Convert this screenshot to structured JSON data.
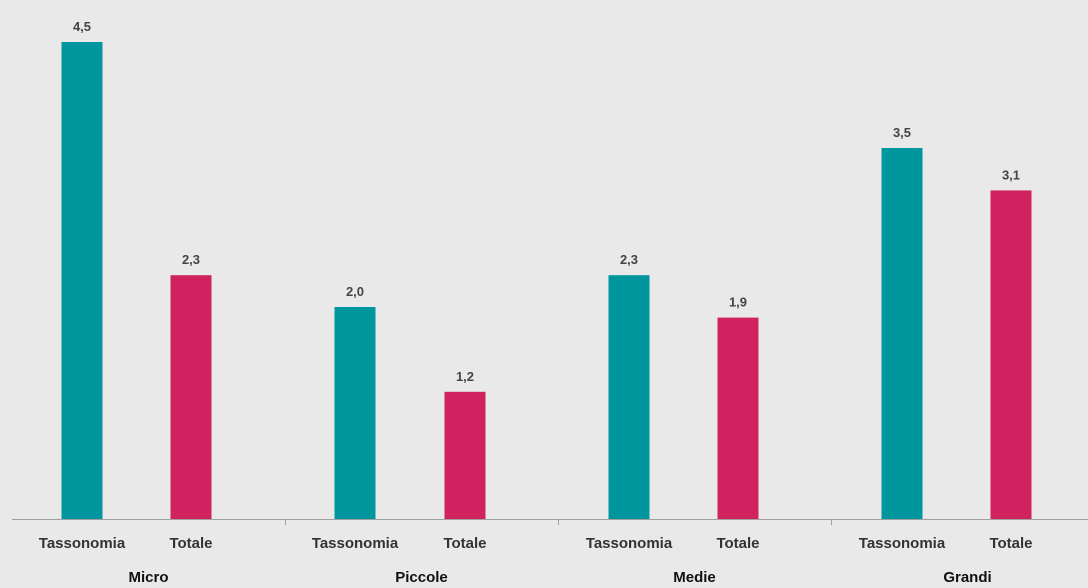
{
  "chart_data": {
    "type": "bar",
    "groups": [
      "Micro",
      "Piccole",
      "Medie",
      "Grandi"
    ],
    "series": [
      {
        "name": "Tassonomia",
        "values": [
          4.5,
          2.0,
          2.3,
          3.5
        ],
        "labels": [
          "4,5",
          "2,0",
          "2,3",
          "3,5"
        ],
        "color": "#00969e"
      },
      {
        "name": "Totale",
        "values": [
          2.3,
          1.2,
          1.9,
          3.1
        ],
        "labels": [
          "2,3",
          "1,2",
          "1,9",
          "3,1"
        ],
        "color": "#d0225f"
      }
    ],
    "ylim": [
      0,
      4.5
    ],
    "grid": false,
    "axis_color": "#a0a0a0"
  }
}
